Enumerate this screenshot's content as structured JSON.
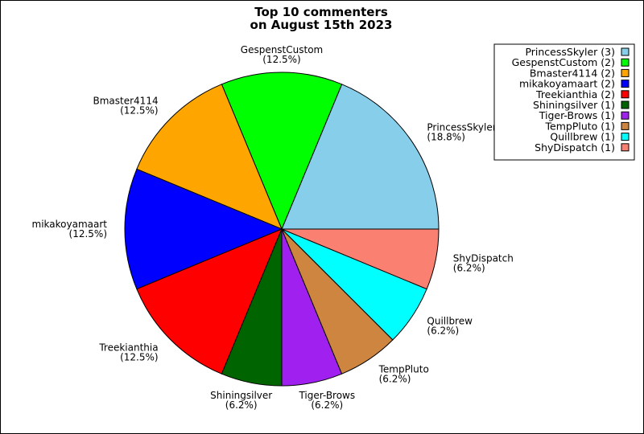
{
  "chart_data": {
    "type": "pie",
    "title_lines": [
      "Top 10 commenters",
      "on August 15th 2023"
    ],
    "slices": [
      {
        "name": "PrincessSkyler",
        "count": 3,
        "percent_label": "(18.8%)",
        "legend_label": "PrincessSkyler (3)",
        "color": "#87ceeb"
      },
      {
        "name": "GespenstCustom",
        "count": 2,
        "percent_label": "(12.5%)",
        "legend_label": "GespenstCustom (2)",
        "color": "#00ff00"
      },
      {
        "name": "Bmaster4114",
        "count": 2,
        "percent_label": "(12.5%)",
        "legend_label": "Bmaster4114 (2)",
        "color": "#ffa500"
      },
      {
        "name": "mikakoyamaart",
        "count": 2,
        "percent_label": "(12.5%)",
        "legend_label": "mikakoyamaart (2)",
        "color": "#0000ff"
      },
      {
        "name": "Treekianthia",
        "count": 2,
        "percent_label": "(12.5%)",
        "legend_label": "Treekianthia (2)",
        "color": "#ff0000"
      },
      {
        "name": "Shiningsilver",
        "count": 1,
        "percent_label": "(6.2%)",
        "legend_label": "Shiningsilver (1)",
        "color": "#006400"
      },
      {
        "name": "Tiger-Brows",
        "count": 1,
        "percent_label": "(6.2%)",
        "legend_label": "Tiger-Brows (1)",
        "color": "#a020f0"
      },
      {
        "name": "TempPluto",
        "count": 1,
        "percent_label": "(6.2%)",
        "legend_label": "TempPluto (1)",
        "color": "#cd853f"
      },
      {
        "name": "Quillbrew",
        "count": 1,
        "percent_label": "(6.2%)",
        "legend_label": "Quillbrew (1)",
        "color": "#00ffff"
      },
      {
        "name": "ShyDispatch",
        "count": 1,
        "percent_label": "(6.2%)",
        "legend_label": "ShyDispatch (1)",
        "color": "#fa8072"
      }
    ],
    "legend_position": "top-right"
  }
}
